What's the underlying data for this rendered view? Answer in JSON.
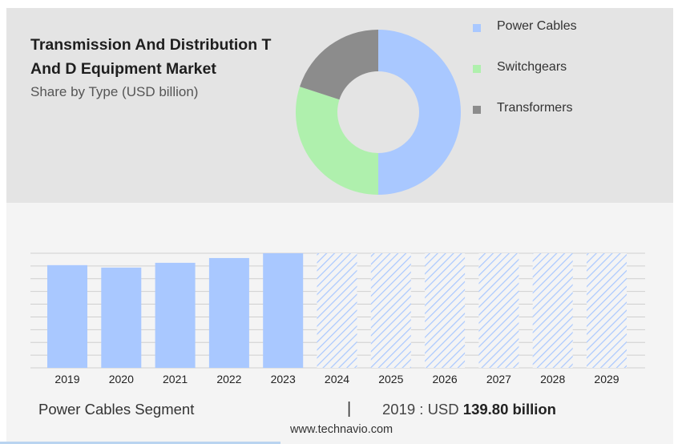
{
  "header": {
    "title": "Transmission And Distribution T And D Equipment Market",
    "subtitle": "Share by Type (USD billion)"
  },
  "colors": {
    "power_cables": "#a9c8ff",
    "switchgears": "#aff0ad",
    "transformers": "#8c8c8c",
    "forecast_hatch": "#a9c8ff",
    "panel_top": "#e4e4e4",
    "panel_bottom": "#f4f4f4"
  },
  "chart_data": [
    {
      "type": "pie",
      "variant": "donut",
      "legend_position": "right",
      "slices": [
        {
          "name": "Power Cables",
          "value": 50
        },
        {
          "name": "Switchgears",
          "value": 30
        },
        {
          "name": "Transformers",
          "value": 20
        }
      ]
    },
    {
      "type": "bar",
      "categories": [
        "2019",
        "2020",
        "2021",
        "2022",
        "2023",
        "2024",
        "2025",
        "2026",
        "2027",
        "2028",
        "2029"
      ],
      "values": [
        139.8,
        136.5,
        143.0,
        149.5,
        156.0,
        null,
        null,
        null,
        null,
        null,
        null
      ],
      "forecast_categories": [
        "2024",
        "2025",
        "2026",
        "2027",
        "2028",
        "2029"
      ],
      "ylim": [
        0,
        156.0
      ],
      "grid": true,
      "y_axis_labels": false
    }
  ],
  "footer": {
    "segment": "Power Cables Segment",
    "separator": "|",
    "value_prefix": "2019 : USD",
    "value_bold": "139.80 billion",
    "source": "www.technavio.com"
  }
}
